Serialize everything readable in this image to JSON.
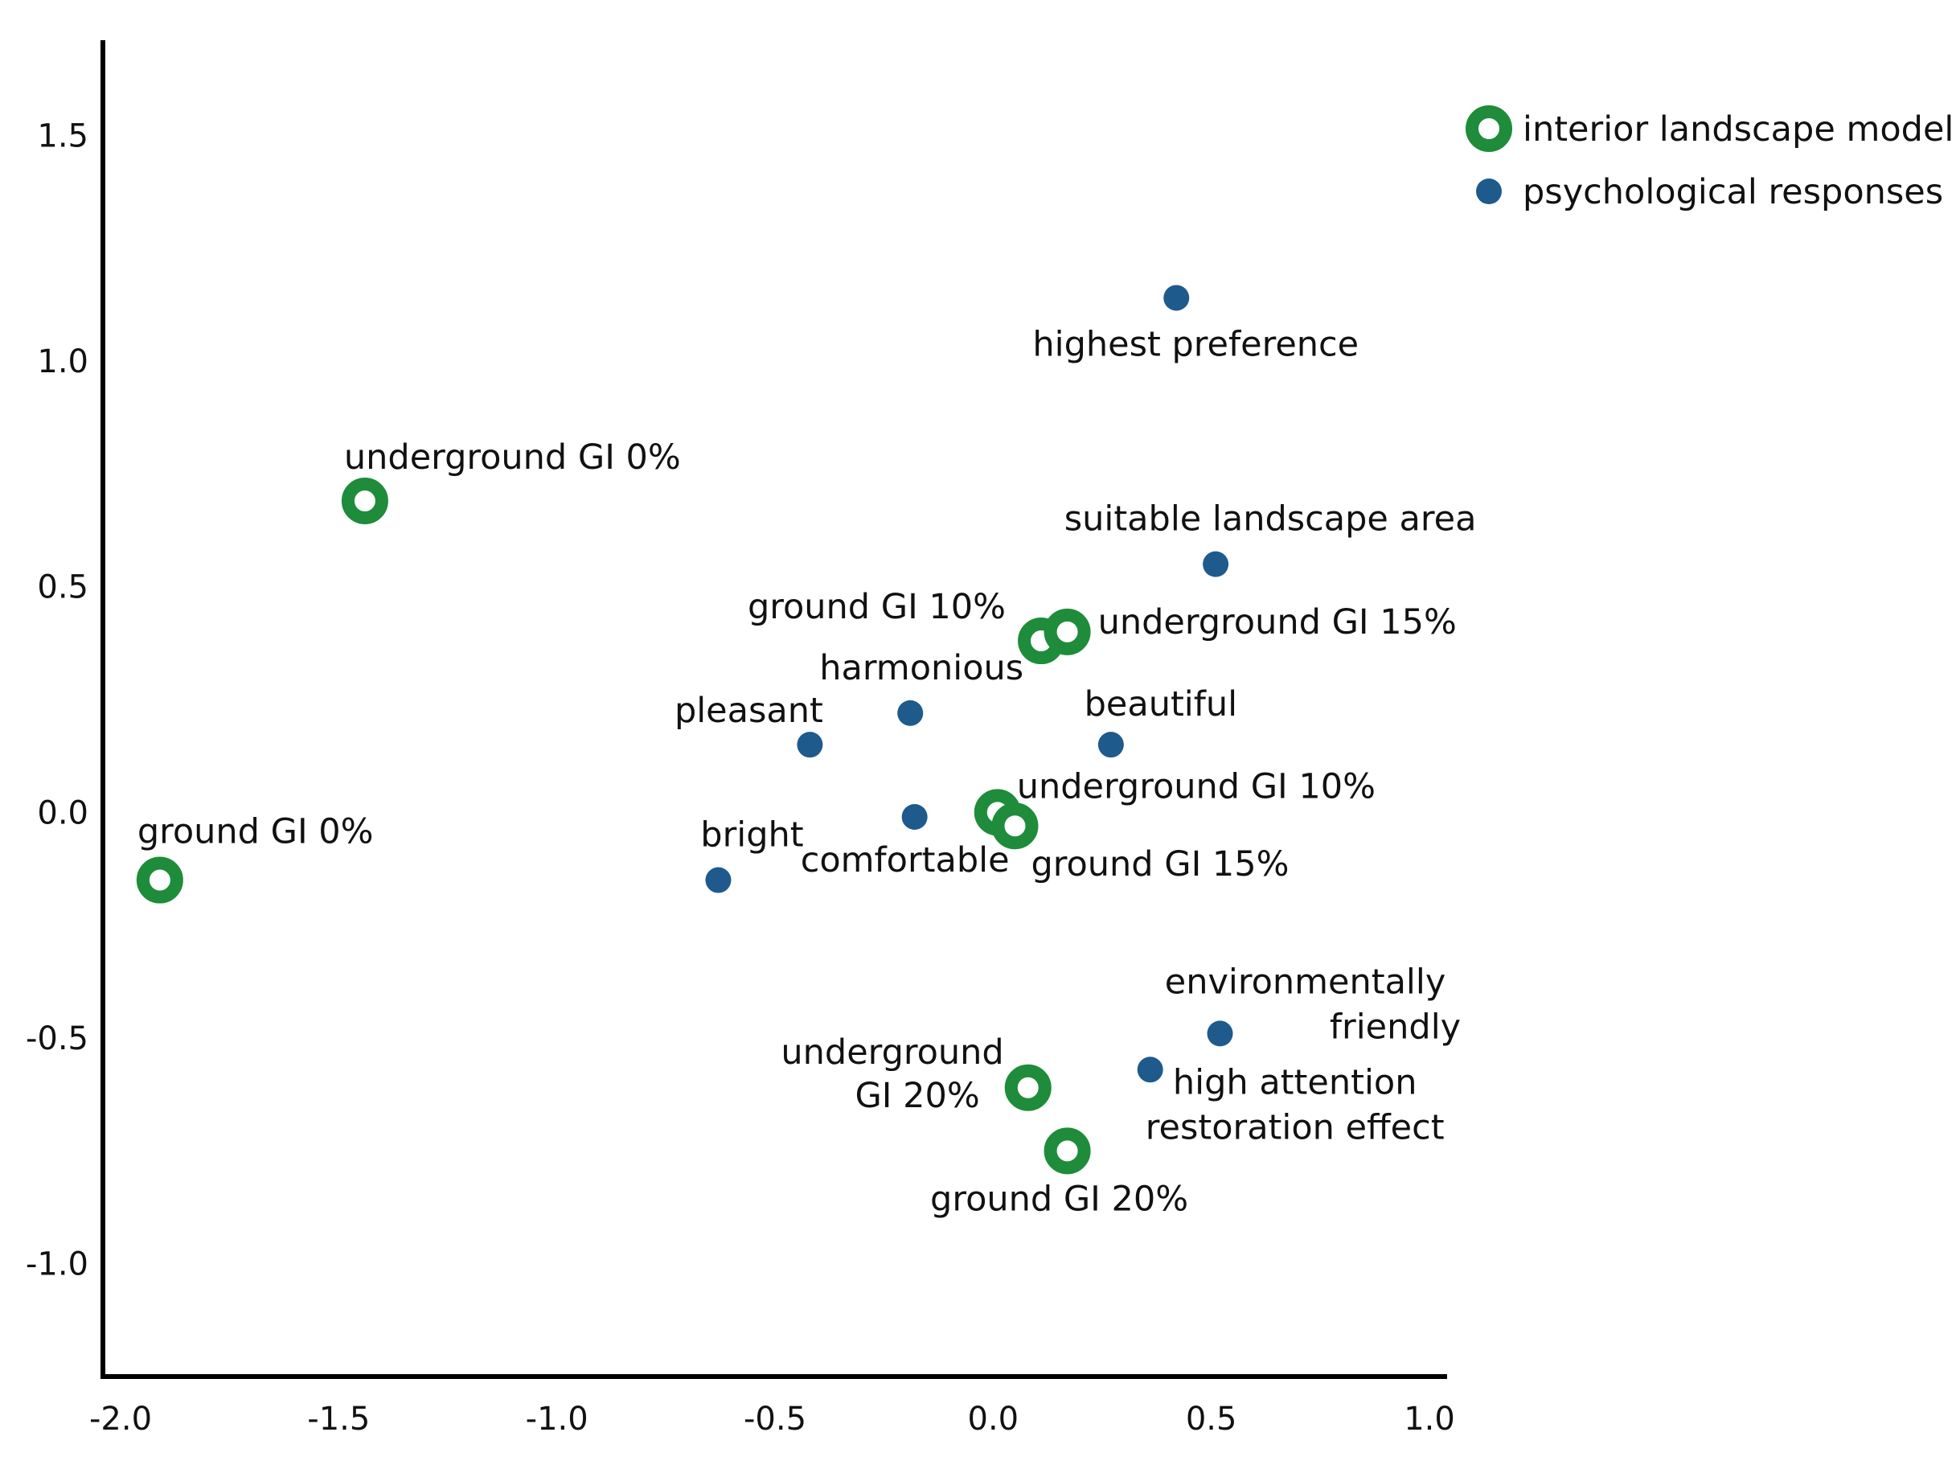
{
  "chart_data": {
    "type": "scatter",
    "title": "",
    "xlabel": "",
    "ylabel": "",
    "xlim": [
      -2.0,
      1.0
    ],
    "ylim": [
      -1.25,
      1.8
    ],
    "grid": false,
    "x_ticks": [
      "-2.0",
      "-1.5",
      "-1.0",
      "-0.5",
      "0.0",
      "0.5",
      "1.0"
    ],
    "y_ticks": [
      "1.5",
      "1.0",
      "0.5",
      "0.0",
      "-0.5",
      "-1.0"
    ],
    "legend": {
      "position": "top-right",
      "entries": [
        "interior landscape model",
        "psychological responses"
      ]
    },
    "colors": {
      "model": "#1e8c3a",
      "response": "#1f5a8c"
    },
    "series": [
      {
        "name": "interior landscape model",
        "marker": "ring",
        "points": [
          {
            "label": "underground GI 0%",
            "x": -1.44,
            "y": 0.69
          },
          {
            "label": "ground GI 0%",
            "x": -1.91,
            "y": -0.15
          },
          {
            "label": "ground GI 10%",
            "x": 0.11,
            "y": 0.38
          },
          {
            "label": "underground GI 15%",
            "x": 0.17,
            "y": 0.4
          },
          {
            "label": "underground GI 10%",
            "x": 0.01,
            "y": 0.0
          },
          {
            "label": "ground GI 15%",
            "x": 0.05,
            "y": -0.03
          },
          {
            "label": "underground GI 20%",
            "label_lines": [
              "underground",
              "GI 20%"
            ],
            "x": 0.08,
            "y": -0.61
          },
          {
            "label": "ground GI 20%",
            "x": 0.17,
            "y": -0.75
          }
        ]
      },
      {
        "name": "psychological responses",
        "marker": "dot",
        "points": [
          {
            "label": "highest preference",
            "x": 0.42,
            "y": 1.14
          },
          {
            "label": "suitable landscape area",
            "x": 0.51,
            "y": 0.55
          },
          {
            "label": "harmonious",
            "x": -0.19,
            "y": 0.22
          },
          {
            "label": "pleasant",
            "x": -0.42,
            "y": 0.15
          },
          {
            "label": "beautiful",
            "x": 0.27,
            "y": 0.15
          },
          {
            "label": "comfortable",
            "x": -0.18,
            "y": -0.01
          },
          {
            "label": "bright",
            "x": -0.63,
            "y": -0.15
          },
          {
            "label": "environmentally friendly",
            "label_lines": [
              "environmentally",
              "friendly"
            ],
            "x": 0.52,
            "y": -0.49
          },
          {
            "label": "high attention restoration effect",
            "label_lines": [
              "high attention",
              "restoration effect"
            ],
            "x": 0.36,
            "y": -0.57
          }
        ]
      }
    ]
  }
}
